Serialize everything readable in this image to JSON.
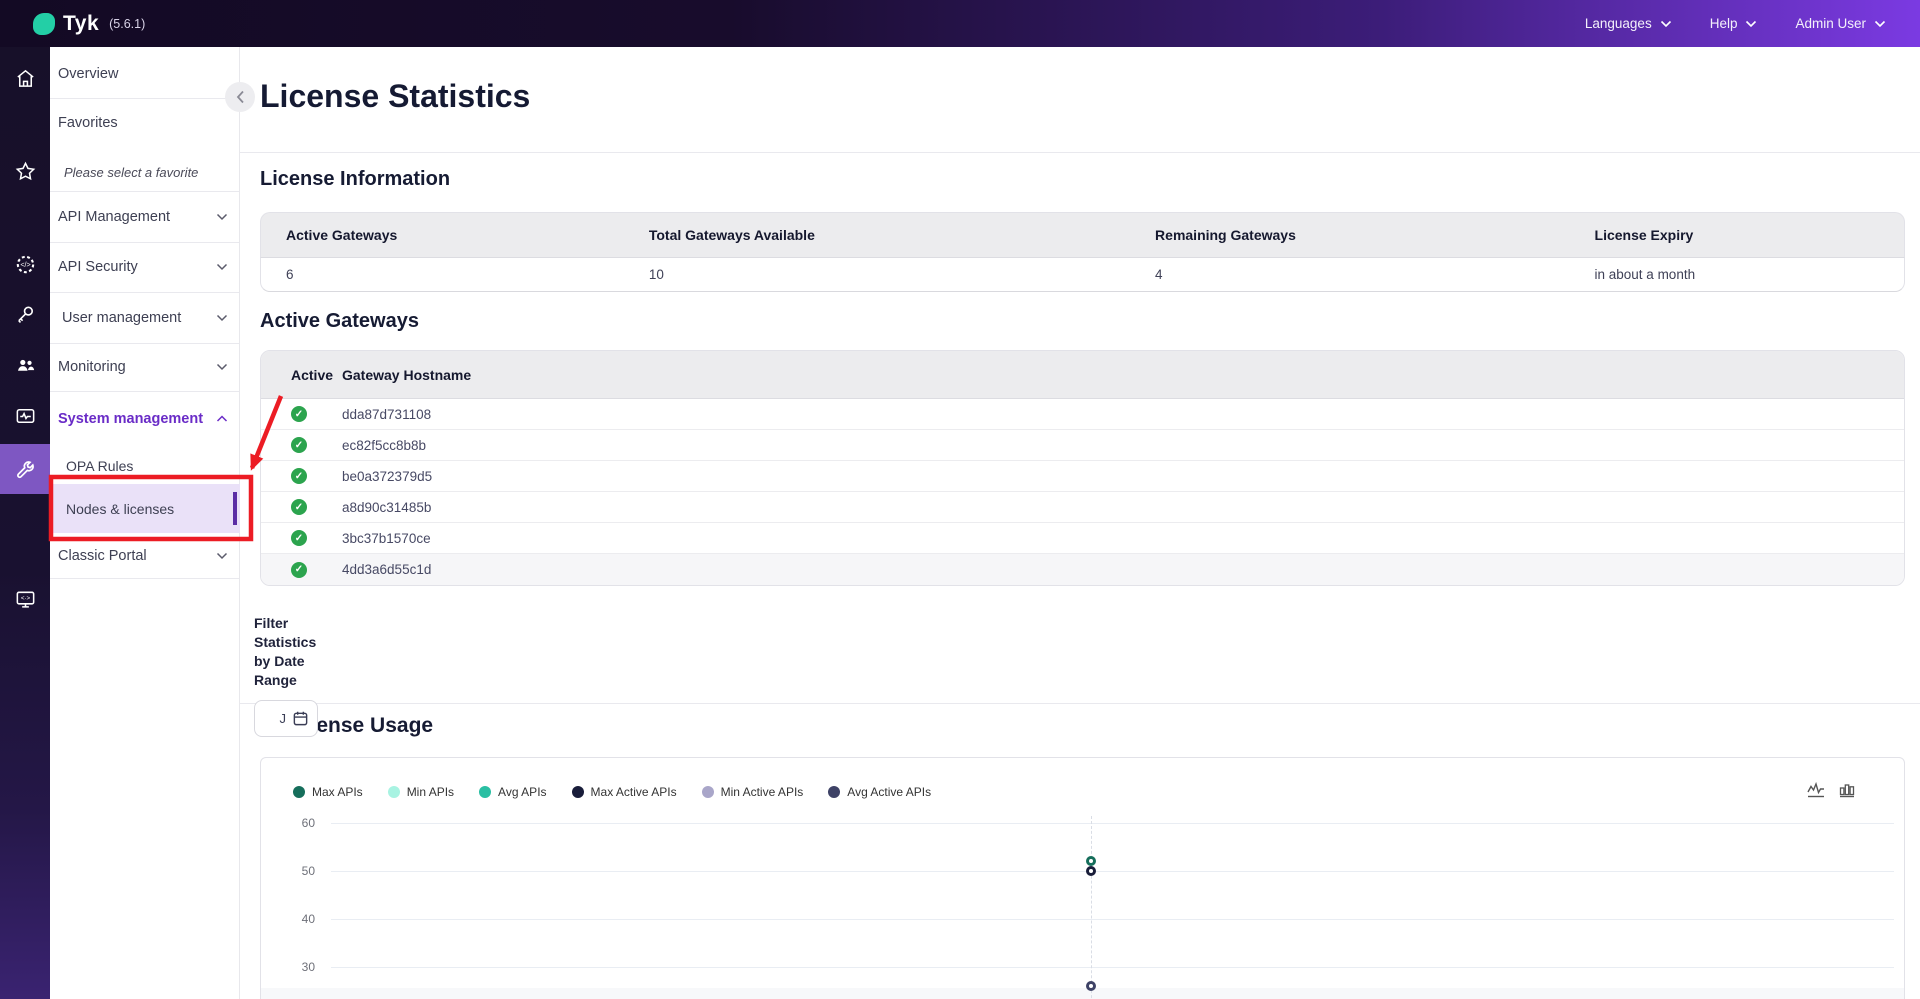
{
  "topbar": {
    "brand": "Tyk",
    "version": "(5.6.1)",
    "menus": [
      {
        "label": "Languages"
      },
      {
        "label": "Help"
      },
      {
        "label": "Admin User"
      }
    ]
  },
  "sidebar": {
    "overview": "Overview",
    "favorites": "Favorites",
    "favorites_hint": "Please select a favorite",
    "api_management": "API Management",
    "api_security": "API Security",
    "user_management": "User management",
    "monitoring": "Monitoring",
    "system_management": "System management",
    "opa_rules": "OPA Rules",
    "nodes_licenses": "Nodes & licenses",
    "classic_portal": "Classic Portal"
  },
  "page": {
    "title": "License Statistics"
  },
  "license_info": {
    "heading": "License Information",
    "columns": [
      "Active Gateways",
      "Total Gateways Available",
      "Remaining Gateways",
      "License Expiry"
    ],
    "values": [
      "6",
      "10",
      "4",
      "in about a month"
    ]
  },
  "active_gateways": {
    "heading": "Active Gateways",
    "columns": [
      "Active",
      "Gateway Hostname"
    ],
    "rows": [
      "dda87d731108",
      "ec82f5cc8b8b",
      "be0a372379d5",
      "a8d90c31485b",
      "3bc37b1570ce",
      "4dd3a6d55c1d"
    ]
  },
  "filter": {
    "full_label": "Filter Statistics by Date Range",
    "label_lines": [
      "Filter",
      "Statistics",
      "by Date",
      "Range"
    ],
    "date_value": "J"
  },
  "usage": {
    "heading": "License Usage"
  },
  "chart_data": {
    "type": "line",
    "title": "License Usage",
    "legend_position": "top-left",
    "grid": true,
    "series": [
      {
        "name": "Max APIs",
        "color": "#166e5b"
      },
      {
        "name": "Min APIs",
        "color": "#a8f3e2"
      },
      {
        "name": "Avg APIs",
        "color": "#2abfa3"
      },
      {
        "name": "Max Active APIs",
        "color": "#191d3a"
      },
      {
        "name": "Min Active APIs",
        "color": "#a9a6c9"
      },
      {
        "name": "Avg Active APIs",
        "color": "#3e4266"
      }
    ],
    "y_ticks": [
      60,
      50,
      40,
      30
    ],
    "y_visible_range": [
      25,
      60
    ],
    "visible_points": [
      {
        "series": "Max APIs",
        "value": 52
      },
      {
        "series": "Max Active APIs",
        "value": 50
      },
      {
        "series": "Avg Active APIs",
        "value": 26
      }
    ]
  },
  "annotation": {
    "color": "#ec1c24",
    "target": "Nodes & licenses"
  },
  "colors": {
    "topbar_purple": "#7b3ae2",
    "rail_active_bg": "#7e57c2",
    "selected_item_bg": "#eae1f8",
    "selected_item_bar": "#5b2da5",
    "system_management_text": "#6a2cc7",
    "check_green": "#2ca44e"
  }
}
